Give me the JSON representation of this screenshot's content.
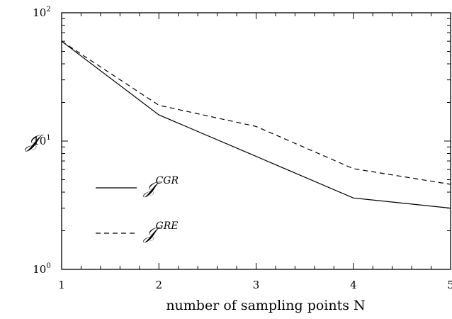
{
  "chart_data": {
    "type": "line",
    "xlabel": "number of sampling points N",
    "ylabel": "𝒥",
    "xlim": [
      1,
      5
    ],
    "ylim": [
      1,
      100
    ],
    "yscale": "log",
    "grid": false,
    "legend_position": "left",
    "x": [
      1,
      2,
      3,
      4,
      5
    ],
    "x_ticks": [
      "1",
      "2",
      "3",
      "4",
      "5"
    ],
    "y_ticks": [
      {
        "base": "10",
        "exp": "0"
      },
      {
        "base": "10",
        "exp": "1"
      },
      {
        "base": "10",
        "exp": "2"
      }
    ],
    "series": [
      {
        "name": "𝒥",
        "superscript": "CGR",
        "style": "solid",
        "values": [
          60,
          16,
          7.6,
          3.6,
          3.0
        ]
      },
      {
        "name": "𝒥",
        "superscript": "GRE",
        "style": "dashed",
        "values": [
          60,
          19,
          13,
          6.1,
          4.6
        ]
      }
    ]
  }
}
